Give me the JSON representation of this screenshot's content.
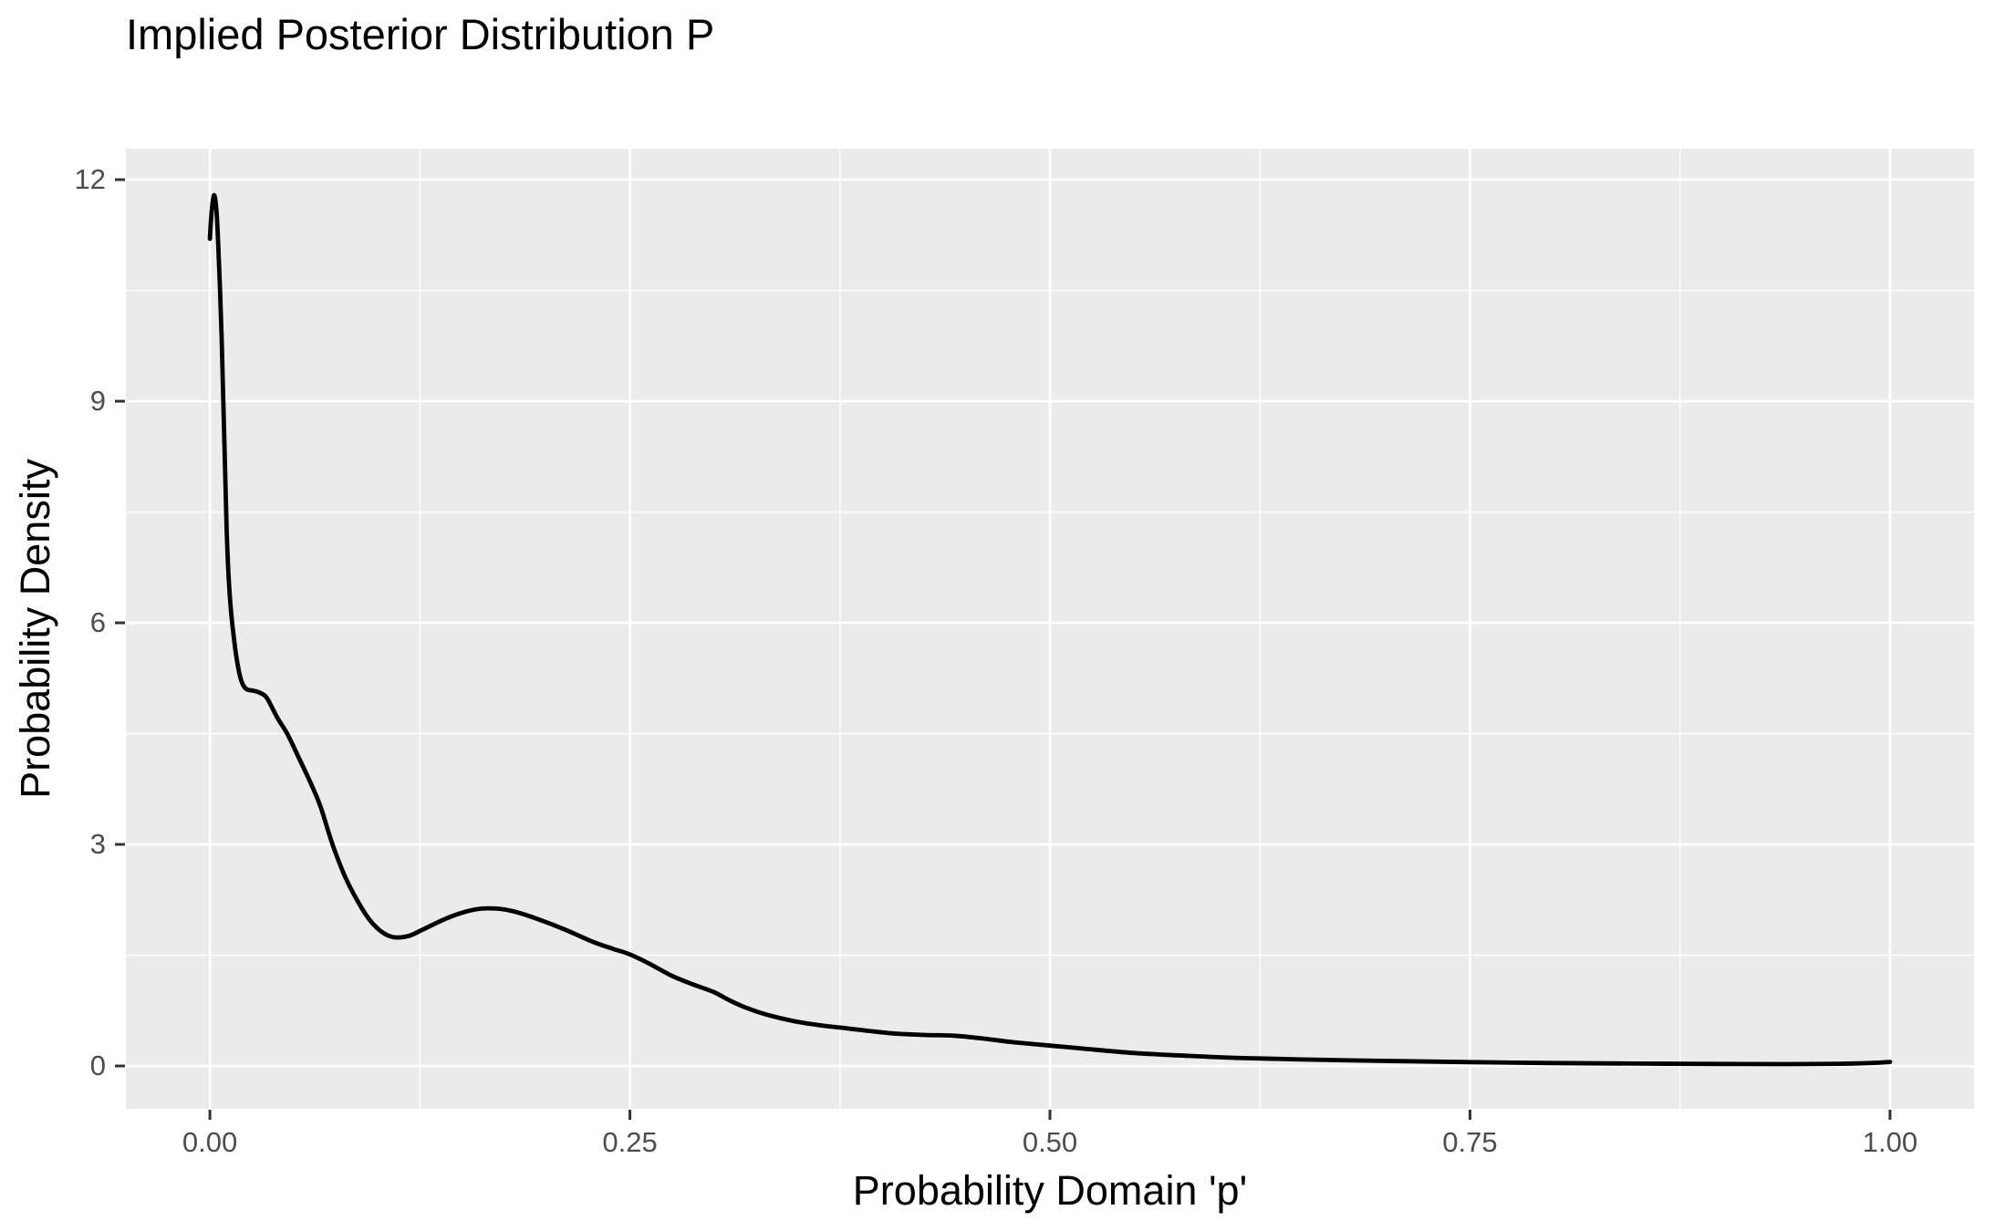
{
  "chart_data": {
    "type": "line",
    "subtype": "density-curve",
    "title": "Implied Posterior Distribution P",
    "xlabel": "Probability Domain 'p'",
    "ylabel": "Probability Density",
    "xlim": [
      0,
      1
    ],
    "ylim": [
      0,
      12
    ],
    "panel_domain": {
      "x": [
        -0.05,
        1.05
      ],
      "y": [
        -0.58,
        12.42
      ]
    },
    "grid": "on",
    "legend": "none",
    "x_ticks": {
      "values": [
        0,
        0.25,
        0.5,
        0.75,
        1.0
      ],
      "labels": [
        "0.00",
        "0.25",
        "0.50",
        "0.75",
        "1.00"
      ]
    },
    "y_ticks": {
      "values": [
        0,
        3,
        6,
        9,
        12
      ],
      "labels": [
        "0",
        "3",
        "6",
        "9",
        "12"
      ]
    },
    "x_minor_ticks": [
      0.125,
      0.375,
      0.625,
      0.875
    ],
    "y_minor_ticks": [
      1.5,
      4.5,
      7.5,
      10.5
    ],
    "colors": {
      "line": "#000000",
      "panel_background": "#ebebeb",
      "grid_major": "#ffffff",
      "grid_minor": "#ffffff",
      "tick_mark": "#333333",
      "tick_label": "#4d4d4d",
      "title_text": "#000000",
      "outer_background": "#ffffff"
    },
    "series": [
      {
        "name": "posterior_density",
        "x": [
          0.0,
          0.0008,
          0.0018,
          0.0028,
          0.004,
          0.005,
          0.006,
          0.007,
          0.008,
          0.009,
          0.01,
          0.0112,
          0.0126,
          0.014,
          0.0157,
          0.0175,
          0.0195,
          0.022,
          0.026,
          0.03,
          0.034,
          0.04,
          0.046,
          0.053,
          0.061,
          0.066,
          0.073,
          0.0805,
          0.088,
          0.095,
          0.102,
          0.109,
          0.118,
          0.127,
          0.138,
          0.148,
          0.158,
          0.166,
          0.175,
          0.186,
          0.198,
          0.212,
          0.228,
          0.24,
          0.25,
          0.262,
          0.275,
          0.288,
          0.3,
          0.31,
          0.32,
          0.332,
          0.347,
          0.362,
          0.375,
          0.39,
          0.407,
          0.425,
          0.443,
          0.461,
          0.479,
          0.503,
          0.52,
          0.55,
          0.58,
          0.61,
          0.65,
          0.7,
          0.75,
          0.8,
          0.85,
          0.9,
          0.94,
          0.97,
          0.99,
          1.0
        ],
        "y": [
          11.2,
          11.5,
          11.72,
          11.78,
          11.55,
          11.1,
          10.55,
          9.85,
          9.0,
          8.1,
          7.25,
          6.6,
          6.15,
          5.85,
          5.55,
          5.32,
          5.17,
          5.1,
          5.08,
          5.05,
          4.98,
          4.72,
          4.5,
          4.17,
          3.78,
          3.5,
          3.0,
          2.56,
          2.23,
          1.98,
          1.82,
          1.745,
          1.758,
          1.85,
          1.97,
          2.06,
          2.12,
          2.135,
          2.12,
          2.06,
          1.965,
          1.84,
          1.68,
          1.585,
          1.51,
          1.38,
          1.22,
          1.1,
          1.0,
          0.88,
          0.78,
          0.69,
          0.61,
          0.555,
          0.52,
          0.48,
          0.44,
          0.42,
          0.41,
          0.37,
          0.32,
          0.27,
          0.235,
          0.175,
          0.14,
          0.11,
          0.088,
          0.068,
          0.052,
          0.04,
          0.032,
          0.027,
          0.025,
          0.03,
          0.042,
          0.055
        ]
      }
    ]
  }
}
